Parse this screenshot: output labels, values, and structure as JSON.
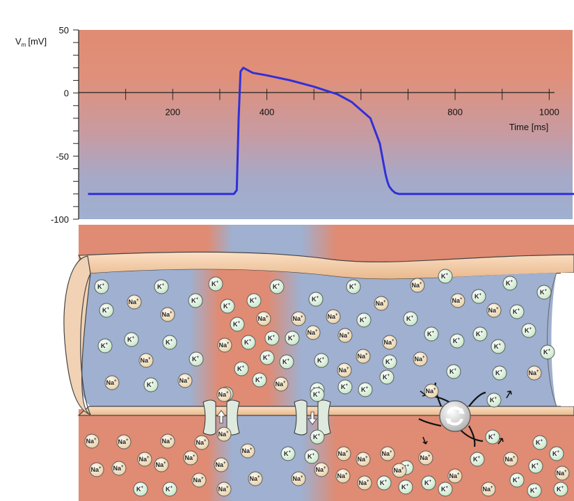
{
  "chart_data": {
    "type": "line",
    "title": "",
    "ylabel": "V",
    "ylabel_sub": "m",
    "ylabel_unit": "[mV]",
    "xlabel": "Time [ms]",
    "ylim": [
      -100,
      50
    ],
    "xlim": [
      0,
      1100
    ],
    "y_ticks": [
      50,
      0,
      -50,
      -100
    ],
    "y_tick_labels": [
      "50",
      "0",
      "-50",
      "-100"
    ],
    "x_ticks": [
      200,
      400,
      800,
      1000
    ],
    "x_tick_labels": [
      "200",
      "400",
      "800",
      "1000"
    ],
    "series": [
      {
        "color": "#3030d8",
        "x": [
          20,
          330,
          336,
          340,
          344,
          350,
          370,
          400,
          450,
          500,
          550,
          580,
          620,
          640,
          648,
          652,
          656,
          660,
          666,
          672,
          680,
          700,
          750,
          800,
          900,
          1000,
          1080
        ],
        "y": [
          -80,
          -80,
          -77,
          -20,
          17,
          20,
          16,
          14,
          10,
          5,
          -1,
          -7,
          -20,
          -40,
          -56,
          -64,
          -70,
          -74,
          -77,
          -79,
          -80,
          -80,
          -80,
          -80,
          -80,
          -80,
          -80
        ]
      }
    ]
  },
  "labels": {
    "k": "K",
    "na": "Na",
    "plus": "+"
  },
  "colors": {
    "extracellular": "#e08b73",
    "intracellular": "#9fb0d0",
    "membrane": "#f5c9a3",
    "k_ion": "#d8efd6",
    "na_ion": "#f0dcba",
    "curve": "#3030d8"
  },
  "icons": {
    "pump": "exchange-cycle-icon",
    "channel_na": "sodium-channel-icon",
    "channel_k": "potassium-channel-icon"
  },
  "ions_inside": [
    "K",
    "K",
    "K",
    "K",
    "K",
    "K",
    "K",
    "Na",
    "K",
    "K",
    "K",
    "K",
    "K",
    "Na",
    "Na",
    "K",
    "K",
    "Na",
    "Na",
    "Na",
    "K",
    "Na",
    "K",
    "Na",
    "Na",
    "K",
    "K",
    "K",
    "K",
    "Na",
    "Na",
    "Na",
    "Na",
    "K",
    "K",
    "K",
    "K",
    "K",
    "K",
    "K",
    "Na",
    "K",
    "K",
    "K",
    "K",
    "Na",
    "K",
    "Na",
    "K",
    "K",
    "K",
    "Na",
    "K",
    "K",
    "Na",
    "K",
    "K",
    "K",
    "K",
    "Na",
    "Na",
    "K",
    "Na",
    "K",
    "K",
    "K",
    "Na",
    "K",
    "K",
    "K"
  ],
  "ions_outside": [
    "Na",
    "Na",
    "Na",
    "Na",
    "Na",
    "K",
    "K",
    "Na",
    "Na",
    "Na",
    "Na",
    "Na",
    "Na",
    "Na",
    "Na",
    "Na",
    "Na",
    "Na",
    "Na",
    "Na",
    "K",
    "K",
    "Na",
    "Na",
    "Na",
    "K",
    "K",
    "K",
    "K",
    "K",
    "Na",
    "Na",
    "K",
    "K",
    "Na",
    "K",
    "K",
    "K",
    "K",
    "Na",
    "Na",
    "K",
    "K",
    "Na"
  ],
  "ions_channel": [
    "Na",
    "Na",
    "K",
    "K"
  ]
}
